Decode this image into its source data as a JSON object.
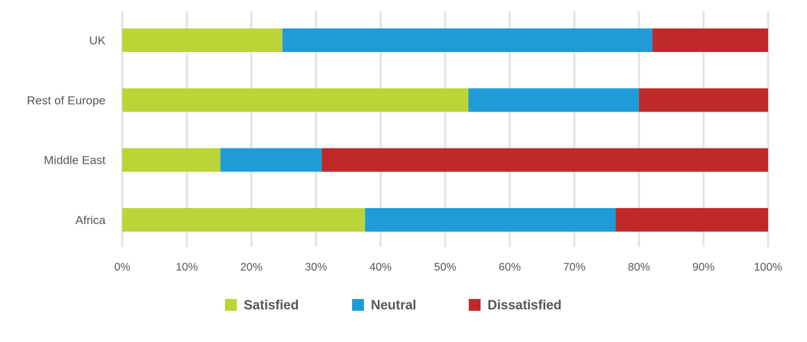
{
  "chart_data": {
    "type": "bar",
    "orientation": "horizontal",
    "stacked": true,
    "categories": [
      "UK",
      "Rest of Europe",
      "Middle East",
      "Africa"
    ],
    "series": [
      {
        "name": "Satisfied",
        "color": "#bbd437",
        "values": [
          24.8,
          53.6,
          15.2,
          37.6
        ]
      },
      {
        "name": "Neutral",
        "color": "#1f9bd7",
        "values": [
          57.3,
          26.4,
          15.7,
          38.8
        ]
      },
      {
        "name": "Dissatisfied",
        "color": "#c0292a",
        "values": [
          17.9,
          20.0,
          69.1,
          23.6
        ]
      }
    ],
    "xlim": [
      0,
      100
    ],
    "xticks": [
      "0%",
      "10%",
      "20%",
      "30%",
      "40%",
      "50%",
      "60%",
      "70%",
      "80%",
      "90%",
      "100%"
    ],
    "grid": true,
    "legend_position": "bottom"
  }
}
